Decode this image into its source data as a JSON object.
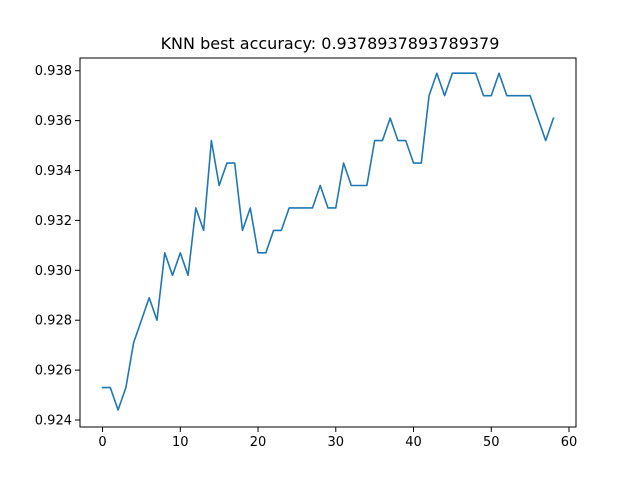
{
  "chart_data": {
    "type": "line",
    "title": "KNN best accuracy: 0.9378937893789379",
    "xlabel": "",
    "ylabel": "",
    "xlim": [
      -2.9,
      60.9
    ],
    "ylim": [
      0.92372,
      0.93851
    ],
    "grid": false,
    "x_ticks": [
      0,
      10,
      20,
      30,
      40,
      50,
      60
    ],
    "y_ticks": [
      0.924,
      0.926,
      0.928,
      0.93,
      0.932,
      0.934,
      0.936,
      0.938
    ],
    "y_tick_labels": [
      "0.924",
      "0.926",
      "0.928",
      "0.930",
      "0.932",
      "0.934",
      "0.936",
      "0.938"
    ],
    "series": [
      {
        "color": "#1f77b4",
        "x": [
          0,
          1,
          2,
          3,
          4,
          5,
          6,
          7,
          8,
          9,
          10,
          11,
          12,
          13,
          14,
          15,
          16,
          17,
          18,
          19,
          20,
          21,
          22,
          23,
          24,
          25,
          26,
          27,
          28,
          29,
          30,
          31,
          32,
          33,
          34,
          35,
          36,
          37,
          38,
          39,
          40,
          41,
          42,
          43,
          44,
          45,
          46,
          47,
          48,
          49,
          50,
          51,
          52,
          53,
          54,
          55,
          56,
          57,
          58
        ],
        "values": [
          0.9253,
          0.9253,
          0.9244,
          0.9253,
          0.9271,
          0.928,
          0.9289,
          0.928,
          0.9307,
          0.9298,
          0.9307,
          0.9298,
          0.9325,
          0.9316,
          0.9352,
          0.9334,
          0.9343,
          0.9343,
          0.9316,
          0.9325,
          0.9307,
          0.9307,
          0.9316,
          0.9316,
          0.9325,
          0.9325,
          0.9325,
          0.9325,
          0.9334,
          0.9325,
          0.9325,
          0.9343,
          0.9334,
          0.9334,
          0.9334,
          0.9352,
          0.9352,
          0.9361,
          0.9352,
          0.9352,
          0.9343,
          0.9343,
          0.937,
          0.9379,
          0.937,
          0.9379,
          0.9379,
          0.9379,
          0.9379,
          0.937,
          0.937,
          0.9379,
          0.937,
          0.937,
          0.937,
          0.937,
          0.9361,
          0.9352,
          0.9361
        ]
      }
    ]
  }
}
